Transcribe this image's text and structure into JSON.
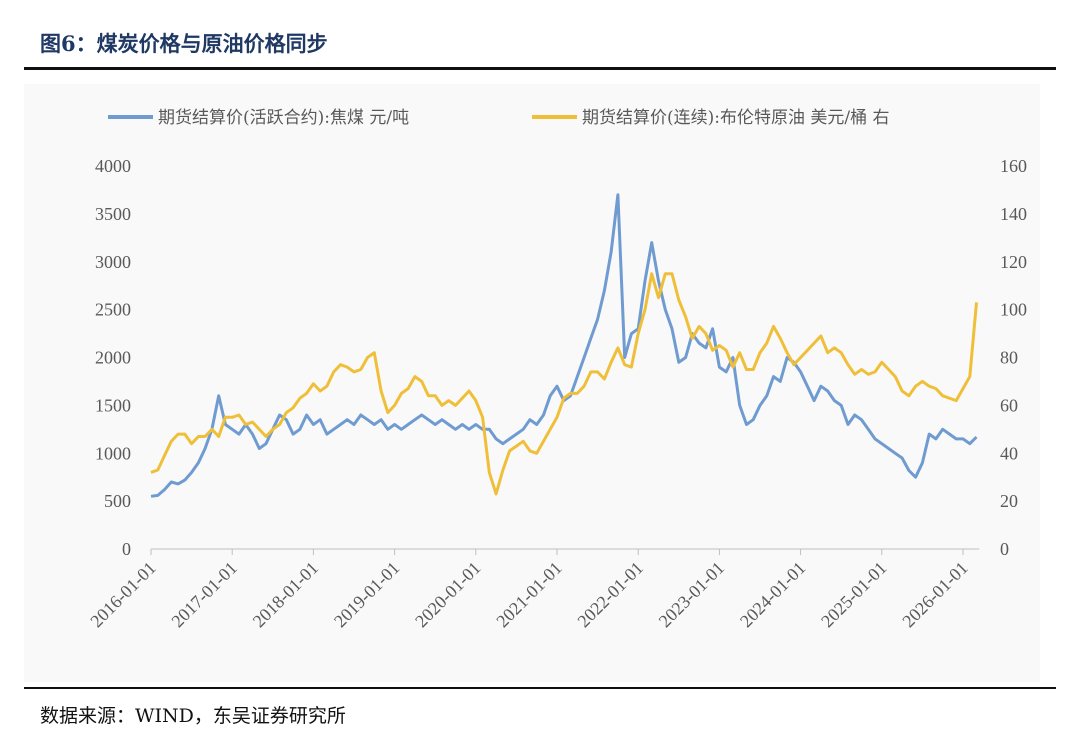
{
  "title": "图6：煤炭价格与原油价格同步",
  "source": "数据来源：WIND，东吴证券研究所",
  "chart_data": {
    "type": "line",
    "title": "",
    "legend_position": "top",
    "grid": false,
    "x_ticks": [
      "2016-01-01",
      "2017-01-01",
      "2018-01-01",
      "2019-01-01",
      "2020-01-01",
      "2021-01-01",
      "2022-01-01",
      "2023-01-01",
      "2024-01-01",
      "2025-01-01",
      "2026-01-01"
    ],
    "y_left": {
      "label": "",
      "ylim": [
        0,
        4000
      ],
      "ticks": [
        "0",
        "500",
        "1000",
        "1500",
        "2000",
        "2500",
        "3000",
        "3500",
        "4000"
      ]
    },
    "y_right": {
      "label": "",
      "ylim": [
        0,
        160
      ],
      "ticks": [
        "0",
        "20",
        "40",
        "60",
        "80",
        "100",
        "120",
        "140",
        "160"
      ]
    },
    "x_start": "2016-01",
    "series": [
      {
        "name": "期货结算价(活跃合约):焦煤 元/吨",
        "axis": "left",
        "color": "#6f9bd1",
        "values": [
          550,
          560,
          620,
          700,
          680,
          720,
          800,
          900,
          1050,
          1250,
          1600,
          1300,
          1250,
          1200,
          1300,
          1200,
          1050,
          1100,
          1250,
          1400,
          1350,
          1200,
          1250,
          1400,
          1300,
          1350,
          1200,
          1250,
          1300,
          1350,
          1300,
          1400,
          1350,
          1300,
          1350,
          1250,
          1300,
          1250,
          1300,
          1350,
          1400,
          1350,
          1300,
          1350,
          1300,
          1250,
          1300,
          1250,
          1300,
          1250,
          1250,
          1150,
          1100,
          1150,
          1200,
          1250,
          1350,
          1300,
          1400,
          1600,
          1700,
          1550,
          1600,
          1800,
          2000,
          2200,
          2400,
          2700,
          3100,
          3700,
          2000,
          2250,
          2300,
          2800,
          3200,
          2800,
          2500,
          2300,
          1950,
          2000,
          2250,
          2150,
          2100,
          2300,
          1900,
          1850,
          2000,
          1500,
          1300,
          1350,
          1500,
          1600,
          1800,
          1750,
          2000,
          1950,
          1850,
          1700,
          1550,
          1700,
          1650,
          1550,
          1500,
          1300,
          1400,
          1350,
          1250,
          1150,
          1100,
          1050,
          1000,
          950,
          820,
          750,
          900,
          1200,
          1150,
          1250,
          1200,
          1150,
          1150,
          1100,
          1170
        ]
      },
      {
        "name": "期货结算价(连续):布伦特原油 美元/桶 右",
        "axis": "right",
        "color": "#f0bf3a",
        "values": [
          32,
          33,
          39,
          45,
          48,
          48,
          44,
          47,
          47,
          50,
          47,
          55,
          55,
          56,
          52,
          53,
          50,
          47,
          50,
          52,
          57,
          59,
          63,
          65,
          69,
          66,
          68,
          74,
          77,
          76,
          74,
          75,
          80,
          82,
          66,
          57,
          60,
          65,
          67,
          72,
          70,
          64,
          64,
          60,
          62,
          60,
          63,
          66,
          62,
          55,
          32,
          23,
          33,
          41,
          43,
          45,
          41,
          40,
          45,
          50,
          55,
          63,
          65,
          65,
          68,
          74,
          74,
          71,
          78,
          84,
          77,
          76,
          90,
          100,
          115,
          105,
          115,
          115,
          104,
          97,
          88,
          93,
          90,
          83,
          85,
          83,
          76,
          82,
          75,
          75,
          82,
          86,
          93,
          88,
          82,
          77,
          80,
          83,
          86,
          89,
          82,
          84,
          82,
          77,
          73,
          75,
          73,
          74,
          78,
          75,
          72,
          66,
          64,
          68,
          70,
          68,
          67,
          64,
          63,
          62,
          67,
          72,
          103
        ]
      }
    ]
  }
}
